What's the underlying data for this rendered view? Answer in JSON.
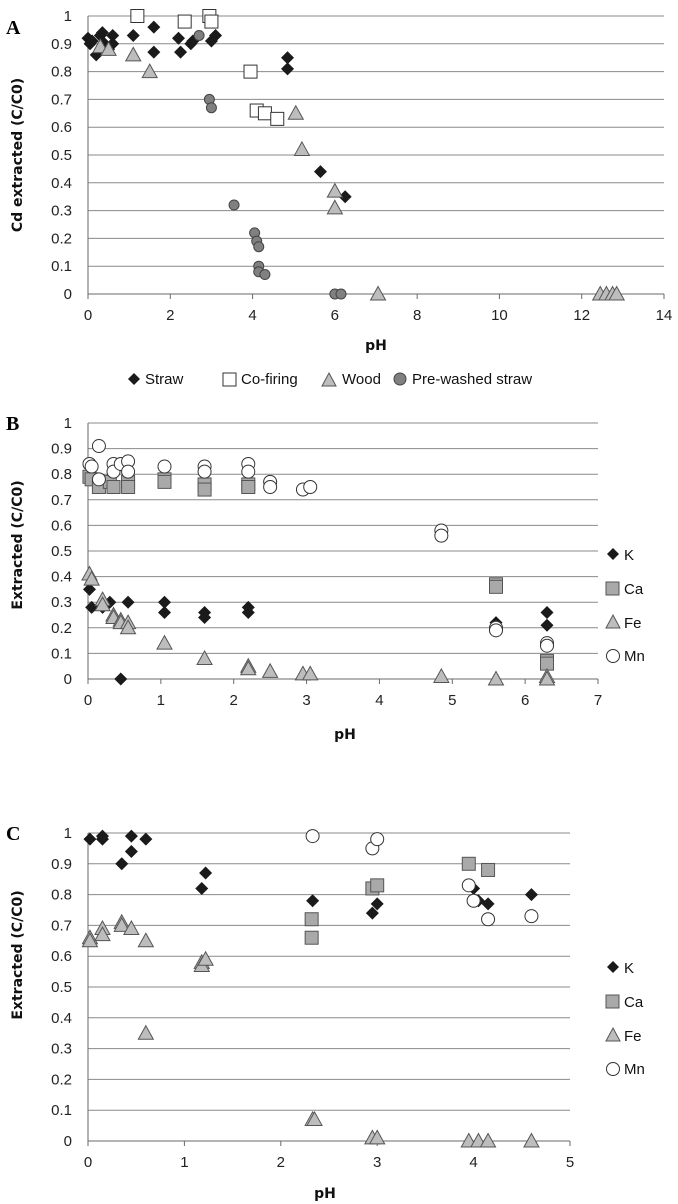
{
  "colors": {
    "diamond": "#1a1a1a",
    "square_fill": "#a9a9a9",
    "triangle_fill": "#bdbdbd",
    "circle_gray": "#808080",
    "grid": "#8a8a8a"
  },
  "chart_data": [
    {
      "type": "scatter",
      "panel_letter": "A",
      "ylabel": "Cd extracted (C/C0)",
      "xlabel": "pH",
      "xlim": [
        0,
        14
      ],
      "ylim": [
        0,
        1
      ],
      "xticks": [
        "0",
        "2",
        "4",
        "6",
        "8",
        "10",
        "12",
        "14"
      ],
      "yticks": [
        "0",
        "0.1",
        "0.2",
        "0.3",
        "0.4",
        "0.5",
        "0.6",
        "0.7",
        "0.8",
        "0.9",
        "1"
      ],
      "legend_position": "bottom",
      "series": [
        {
          "name": "Straw",
          "marker": "diamond",
          "points": [
            [
              0.0,
              0.92
            ],
            [
              0.05,
              0.9
            ],
            [
              0.1,
              0.91
            ],
            [
              0.2,
              0.86
            ],
            [
              0.3,
              0.93
            ],
            [
              0.35,
              0.94
            ],
            [
              0.4,
              0.9
            ],
            [
              0.5,
              0.88
            ],
            [
              0.6,
              0.93
            ],
            [
              0.6,
              0.9
            ],
            [
              1.1,
              0.93
            ],
            [
              1.6,
              0.96
            ],
            [
              1.6,
              0.87
            ],
            [
              2.2,
              0.92
            ],
            [
              2.25,
              0.87
            ],
            [
              2.5,
              0.9
            ],
            [
              2.55,
              0.91
            ],
            [
              3.0,
              0.91
            ],
            [
              3.1,
              0.93
            ],
            [
              4.85,
              0.85
            ],
            [
              4.85,
              0.81
            ],
            [
              5.65,
              0.44
            ],
            [
              6.25,
              0.35
            ]
          ]
        },
        {
          "name": "Co-firing",
          "marker": "square",
          "points": [
            [
              1.2,
              1.0
            ],
            [
              2.35,
              0.98
            ],
            [
              2.95,
              1.0
            ],
            [
              3.0,
              0.98
            ],
            [
              3.95,
              0.8
            ],
            [
              4.1,
              0.66
            ],
            [
              4.3,
              0.65
            ],
            [
              4.6,
              0.63
            ]
          ]
        },
        {
          "name": "Wood",
          "marker": "triangle",
          "points": [
            [
              0.3,
              0.89
            ],
            [
              0.5,
              0.88
            ],
            [
              1.1,
              0.86
            ],
            [
              1.5,
              0.8
            ],
            [
              5.05,
              0.65
            ],
            [
              5.2,
              0.52
            ],
            [
              6.0,
              0.37
            ],
            [
              6.0,
              0.31
            ],
            [
              7.05,
              0.0
            ],
            [
              12.45,
              0.0
            ],
            [
              12.6,
              0.0
            ],
            [
              12.75,
              0.0
            ],
            [
              12.85,
              0.0
            ]
          ]
        },
        {
          "name": "Pre-washed straw",
          "marker": "circle",
          "points": [
            [
              2.7,
              0.93
            ],
            [
              2.95,
              0.7
            ],
            [
              3.0,
              0.67
            ],
            [
              3.55,
              0.32
            ],
            [
              4.05,
              0.22
            ],
            [
              4.1,
              0.19
            ],
            [
              4.15,
              0.17
            ],
            [
              4.15,
              0.1
            ],
            [
              4.15,
              0.08
            ],
            [
              4.3,
              0.07
            ],
            [
              6.0,
              0.0
            ],
            [
              6.15,
              0.0
            ]
          ]
        }
      ]
    },
    {
      "type": "scatter",
      "panel_letter": "B",
      "ylabel": "Extracted (C/C0)",
      "xlabel": "pH",
      "xlim": [
        0,
        7
      ],
      "ylim": [
        0,
        1
      ],
      "xticks": [
        "0",
        "1",
        "2",
        "3",
        "4",
        "5",
        "6",
        "7"
      ],
      "yticks": [
        "0",
        "0.1",
        "0.2",
        "0.3",
        "0.4",
        "0.5",
        "0.6",
        "0.7",
        "0.8",
        "0.9",
        "1"
      ],
      "legend_position": "right",
      "series": [
        {
          "name": "K",
          "marker": "diamond",
          "points": [
            [
              0.02,
              0.35
            ],
            [
              0.05,
              0.28
            ],
            [
              0.2,
              0.28
            ],
            [
              0.3,
              0.3
            ],
            [
              0.45,
              0.0
            ],
            [
              0.55,
              0.3
            ],
            [
              1.05,
              0.3
            ],
            [
              1.05,
              0.26
            ],
            [
              1.6,
              0.26
            ],
            [
              1.6,
              0.24
            ],
            [
              2.2,
              0.28
            ],
            [
              2.2,
              0.26
            ],
            [
              5.6,
              0.22
            ],
            [
              6.3,
              0.26
            ],
            [
              6.3,
              0.21
            ]
          ]
        },
        {
          "name": "Ca",
          "marker": "square",
          "points": [
            [
              0.02,
              0.79
            ],
            [
              0.05,
              0.78
            ],
            [
              0.15,
              0.75
            ],
            [
              0.3,
              0.77
            ],
            [
              0.35,
              0.75
            ],
            [
              0.55,
              0.77
            ],
            [
              0.55,
              0.75
            ],
            [
              1.05,
              0.78
            ],
            [
              1.05,
              0.77
            ],
            [
              1.6,
              0.76
            ],
            [
              1.6,
              0.74
            ],
            [
              2.2,
              0.76
            ],
            [
              2.2,
              0.75
            ],
            [
              5.6,
              0.37
            ],
            [
              5.6,
              0.36
            ],
            [
              6.3,
              0.07
            ],
            [
              6.3,
              0.06
            ]
          ]
        },
        {
          "name": "Fe",
          "marker": "triangle",
          "points": [
            [
              0.02,
              0.41
            ],
            [
              0.05,
              0.39
            ],
            [
              0.2,
              0.31
            ],
            [
              0.2,
              0.29
            ],
            [
              0.35,
              0.25
            ],
            [
              0.35,
              0.24
            ],
            [
              0.45,
              0.23
            ],
            [
              0.45,
              0.22
            ],
            [
              0.55,
              0.22
            ],
            [
              0.55,
              0.2
            ],
            [
              1.05,
              0.14
            ],
            [
              1.6,
              0.08
            ],
            [
              2.2,
              0.05
            ],
            [
              2.2,
              0.04
            ],
            [
              2.5,
              0.03
            ],
            [
              2.95,
              0.02
            ],
            [
              3.05,
              0.02
            ],
            [
              4.85,
              0.01
            ],
            [
              5.6,
              0.0
            ],
            [
              6.3,
              0.01
            ],
            [
              6.3,
              0.0
            ]
          ]
        },
        {
          "name": "Mn",
          "marker": "circle",
          "points": [
            [
              0.02,
              0.84
            ],
            [
              0.05,
              0.83
            ],
            [
              0.15,
              0.91
            ],
            [
              0.15,
              0.78
            ],
            [
              0.35,
              0.84
            ],
            [
              0.35,
              0.81
            ],
            [
              0.45,
              0.84
            ],
            [
              0.55,
              0.85
            ],
            [
              0.55,
              0.81
            ],
            [
              1.05,
              0.83
            ],
            [
              1.6,
              0.83
            ],
            [
              1.6,
              0.81
            ],
            [
              2.2,
              0.84
            ],
            [
              2.2,
              0.81
            ],
            [
              2.5,
              0.77
            ],
            [
              2.5,
              0.75
            ],
            [
              2.95,
              0.74
            ],
            [
              3.05,
              0.75
            ],
            [
              4.85,
              0.58
            ],
            [
              4.85,
              0.56
            ],
            [
              5.6,
              0.2
            ],
            [
              5.6,
              0.19
            ],
            [
              6.3,
              0.14
            ],
            [
              6.3,
              0.13
            ]
          ]
        }
      ]
    },
    {
      "type": "scatter",
      "panel_letter": "C",
      "ylabel": "Extracted (C/C0)",
      "xlabel": "pH",
      "xlim": [
        0,
        5
      ],
      "ylim": [
        0,
        1
      ],
      "xticks": [
        "0",
        "1",
        "2",
        "3",
        "4",
        "5"
      ],
      "yticks": [
        "0",
        "0.1",
        "0.2",
        "0.3",
        "0.4",
        "0.5",
        "0.6",
        "0.7",
        "0.8",
        "0.9",
        "1"
      ],
      "legend_position": "right",
      "series": [
        {
          "name": "K",
          "marker": "diamond",
          "points": [
            [
              0.02,
              0.98
            ],
            [
              0.15,
              0.98
            ],
            [
              0.15,
              0.99
            ],
            [
              0.35,
              0.9
            ],
            [
              0.45,
              0.99
            ],
            [
              0.45,
              0.94
            ],
            [
              0.6,
              0.98
            ],
            [
              1.18,
              0.82
            ],
            [
              1.22,
              0.87
            ],
            [
              2.33,
              0.78
            ],
            [
              2.95,
              0.74
            ],
            [
              3.0,
              0.77
            ],
            [
              4.0,
              0.82
            ],
            [
              4.0,
              0.78
            ],
            [
              4.05,
              0.78
            ],
            [
              4.15,
              0.77
            ],
            [
              4.6,
              0.8
            ]
          ]
        },
        {
          "name": "Ca",
          "marker": "square",
          "points": [
            [
              2.32,
              0.72
            ],
            [
              2.32,
              0.66
            ],
            [
              2.95,
              0.82
            ],
            [
              3.0,
              0.83
            ],
            [
              3.95,
              0.9
            ],
            [
              4.15,
              0.88
            ]
          ]
        },
        {
          "name": "Fe",
          "marker": "triangle",
          "points": [
            [
              0.02,
              0.66
            ],
            [
              0.02,
              0.65
            ],
            [
              0.15,
              0.69
            ],
            [
              0.15,
              0.67
            ],
            [
              0.35,
              0.71
            ],
            [
              0.35,
              0.7
            ],
            [
              0.45,
              0.69
            ],
            [
              0.6,
              0.65
            ],
            [
              0.6,
              0.35
            ],
            [
              1.18,
              0.58
            ],
            [
              1.18,
              0.57
            ],
            [
              1.22,
              0.59
            ],
            [
              2.33,
              0.07
            ],
            [
              2.35,
              0.07
            ],
            [
              2.95,
              0.01
            ],
            [
              3.0,
              0.01
            ],
            [
              3.95,
              0.0
            ],
            [
              4.05,
              0.0
            ],
            [
              4.15,
              0.0
            ],
            [
              4.6,
              0.0
            ]
          ]
        },
        {
          "name": "Mn",
          "marker": "circle",
          "points": [
            [
              2.33,
              0.99
            ],
            [
              2.95,
              0.95
            ],
            [
              3.0,
              0.98
            ],
            [
              3.95,
              0.83
            ],
            [
              4.0,
              0.78
            ],
            [
              4.15,
              0.72
            ],
            [
              4.6,
              0.73
            ]
          ]
        }
      ]
    }
  ]
}
